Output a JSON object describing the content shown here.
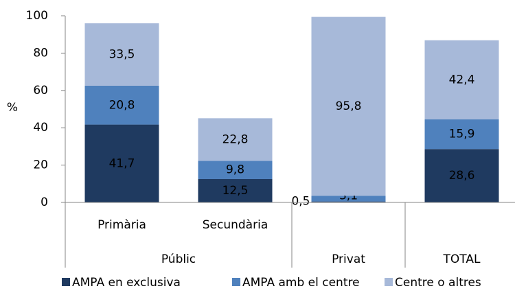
{
  "chart_data": {
    "type": "stacked_bar",
    "y_label": "%",
    "categories": [
      "Primària",
      "Secundària",
      null,
      null
    ],
    "groups": [
      {
        "label": "Públic",
        "span": 2
      },
      {
        "label": "Privat",
        "span": 1
      },
      {
        "label": "TOTAL",
        "span": 1
      }
    ],
    "series": [
      {
        "name": "AMPA en exclusiva",
        "color": "#1f3a60",
        "label_color": "#ffffff",
        "values": [
          41.7,
          12.5,
          0.5,
          28.6
        ],
        "value_labels": [
          "41,7",
          "12,5",
          "0,5",
          "28,6"
        ]
      },
      {
        "name": "AMPA amb el centre",
        "color": "#4f81bd",
        "label_color": "#ffffff",
        "values": [
          20.8,
          9.8,
          3.1,
          15.9
        ],
        "value_labels": [
          "20,8",
          "9,8",
          "3,1",
          "15,9"
        ]
      },
      {
        "name": "Centre o altres",
        "color": "#a7b9d9",
        "label_color": "#222222",
        "values": [
          33.5,
          22.8,
          95.8,
          42.4
        ],
        "value_labels": [
          "33,5",
          "22,8",
          "95,8",
          "42,4"
        ]
      }
    ],
    "ylim": [
      0,
      100
    ],
    "yticks": [
      0,
      20,
      40,
      60,
      80,
      100
    ],
    "grid": false
  }
}
